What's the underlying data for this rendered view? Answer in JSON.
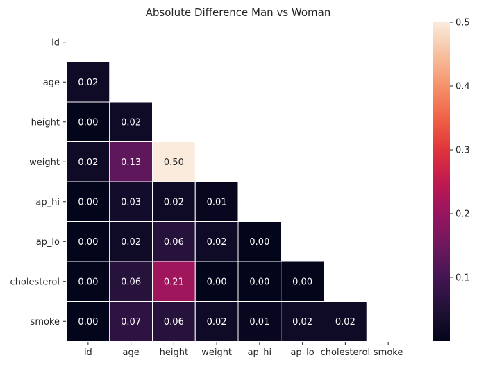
{
  "chart_data": {
    "type": "heatmap",
    "title": "Absolute Difference Man vs Woman",
    "xlabel": "",
    "ylabel": "",
    "rows": [
      "id",
      "age",
      "height",
      "weight",
      "ap_hi",
      "ap_lo",
      "cholesterol",
      "smoke"
    ],
    "columns": [
      "id",
      "age",
      "height",
      "weight",
      "ap_hi",
      "ap_lo",
      "cholesterol",
      "smoke"
    ],
    "mask": "upper triangle including diagonal",
    "cells": [
      {
        "row": "age",
        "col": "id",
        "value": 0.02,
        "label": "0.02"
      },
      {
        "row": "height",
        "col": "id",
        "value": 0.0,
        "label": "0.00"
      },
      {
        "row": "height",
        "col": "age",
        "value": 0.02,
        "label": "0.02"
      },
      {
        "row": "weight",
        "col": "id",
        "value": 0.02,
        "label": "0.02"
      },
      {
        "row": "weight",
        "col": "age",
        "value": 0.13,
        "label": "0.13"
      },
      {
        "row": "weight",
        "col": "height",
        "value": 0.5,
        "label": "0.50"
      },
      {
        "row": "ap_hi",
        "col": "id",
        "value": 0.0,
        "label": "0.00"
      },
      {
        "row": "ap_hi",
        "col": "age",
        "value": 0.03,
        "label": "0.03"
      },
      {
        "row": "ap_hi",
        "col": "height",
        "value": 0.02,
        "label": "0.02"
      },
      {
        "row": "ap_hi",
        "col": "weight",
        "value": 0.01,
        "label": "0.01"
      },
      {
        "row": "ap_lo",
        "col": "id",
        "value": 0.0,
        "label": "0.00"
      },
      {
        "row": "ap_lo",
        "col": "age",
        "value": 0.02,
        "label": "0.02"
      },
      {
        "row": "ap_lo",
        "col": "height",
        "value": 0.06,
        "label": "0.06"
      },
      {
        "row": "ap_lo",
        "col": "weight",
        "value": 0.02,
        "label": "0.02"
      },
      {
        "row": "ap_lo",
        "col": "ap_hi",
        "value": 0.0,
        "label": "0.00"
      },
      {
        "row": "cholesterol",
        "col": "id",
        "value": 0.0,
        "label": "0.00"
      },
      {
        "row": "cholesterol",
        "col": "age",
        "value": 0.06,
        "label": "0.06"
      },
      {
        "row": "cholesterol",
        "col": "height",
        "value": 0.21,
        "label": "0.21"
      },
      {
        "row": "cholesterol",
        "col": "weight",
        "value": 0.0,
        "label": "0.00"
      },
      {
        "row": "cholesterol",
        "col": "ap_hi",
        "value": 0.0,
        "label": "0.00"
      },
      {
        "row": "cholesterol",
        "col": "ap_lo",
        "value": 0.0,
        "label": "0.00"
      },
      {
        "row": "smoke",
        "col": "id",
        "value": 0.0,
        "label": "0.00"
      },
      {
        "row": "smoke",
        "col": "age",
        "value": 0.07,
        "label": "0.07"
      },
      {
        "row": "smoke",
        "col": "height",
        "value": 0.06,
        "label": "0.06"
      },
      {
        "row": "smoke",
        "col": "weight",
        "value": 0.02,
        "label": "0.02"
      },
      {
        "row": "smoke",
        "col": "ap_hi",
        "value": 0.01,
        "label": "0.01"
      },
      {
        "row": "smoke",
        "col": "ap_lo",
        "value": 0.02,
        "label": "0.02"
      },
      {
        "row": "smoke",
        "col": "cholesterol",
        "value": 0.02,
        "label": "0.02"
      }
    ],
    "colorbar": {
      "range": [
        0.0,
        0.5
      ],
      "colormap": "rocket",
      "ticks": [
        0.1,
        0.2,
        0.3,
        0.4,
        0.5
      ],
      "tick_labels": [
        "0.1",
        "0.2",
        "0.3",
        "0.4",
        "0.5"
      ]
    },
    "cell_border_color": "#ffffff",
    "annotation_color_dark_bg": "#ffffff",
    "annotation_color_light_bg": "#262626"
  }
}
